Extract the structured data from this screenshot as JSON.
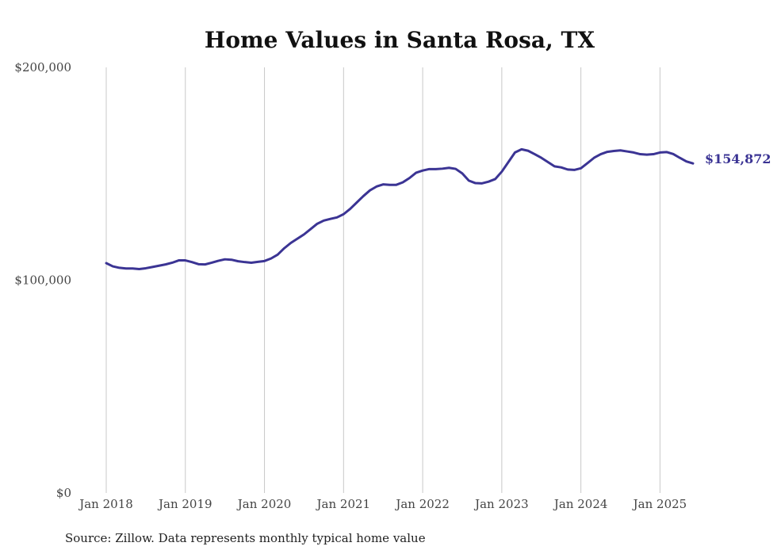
{
  "chart_data": {
    "type": "line",
    "title": "Home Values in Santa Rosa, TX",
    "source": "Source: Zillow. Data represents monthly typical home value",
    "xlabel": "",
    "ylabel": "",
    "ylim": [
      0,
      200000
    ],
    "xlim": [
      "2018-01",
      "2025-06"
    ],
    "y_ticks": [
      {
        "value": 0,
        "label": "$0"
      },
      {
        "value": 100000,
        "label": "$100,000"
      },
      {
        "value": 200000,
        "label": "$200,000"
      }
    ],
    "x_ticks": [
      {
        "value": "2018-01",
        "label": "Jan 2018"
      },
      {
        "value": "2019-01",
        "label": "Jan 2019"
      },
      {
        "value": "2020-01",
        "label": "Jan 2020"
      },
      {
        "value": "2021-01",
        "label": "Jan 2021"
      },
      {
        "value": "2022-01",
        "label": "Jan 2022"
      },
      {
        "value": "2023-01",
        "label": "Jan 2023"
      },
      {
        "value": "2024-01",
        "label": "Jan 2024"
      },
      {
        "value": "2025-01",
        "label": "Jan 2025"
      }
    ],
    "grid": {
      "vertical": true,
      "horizontal": false
    },
    "color": "#3b3494",
    "end_label": "$154,872",
    "series": [
      {
        "x": [
          "2018-01",
          "2018-02",
          "2018-03",
          "2018-04",
          "2018-05",
          "2018-06",
          "2018-07",
          "2018-08",
          "2018-09",
          "2018-10",
          "2018-11",
          "2018-12",
          "2019-01",
          "2019-02",
          "2019-03",
          "2019-04",
          "2019-05",
          "2019-06",
          "2019-07",
          "2019-08",
          "2019-09",
          "2019-10",
          "2019-11",
          "2019-12",
          "2020-01",
          "2020-02",
          "2020-03",
          "2020-04",
          "2020-05",
          "2020-06",
          "2020-07",
          "2020-08",
          "2020-09",
          "2020-10",
          "2020-11",
          "2020-12",
          "2021-01",
          "2021-02",
          "2021-03",
          "2021-04",
          "2021-05",
          "2021-06",
          "2021-07",
          "2021-08",
          "2021-09",
          "2021-10",
          "2021-11",
          "2021-12",
          "2022-01",
          "2022-02",
          "2022-03",
          "2022-04",
          "2022-05",
          "2022-06",
          "2022-07",
          "2022-08",
          "2022-09",
          "2022-10",
          "2022-11",
          "2022-12",
          "2023-01",
          "2023-02",
          "2023-03",
          "2023-04",
          "2023-05",
          "2023-06",
          "2023-07",
          "2023-08",
          "2023-09",
          "2023-10",
          "2023-11",
          "2023-12",
          "2024-01",
          "2024-02",
          "2024-03",
          "2024-04",
          "2024-05",
          "2024-06",
          "2024-07",
          "2024-08",
          "2024-09",
          "2024-10",
          "2024-11",
          "2024-12",
          "2025-01",
          "2025-02",
          "2025-03",
          "2025-04",
          "2025-05",
          "2025-06"
        ],
        "values": [
          108000,
          106500,
          105800,
          105500,
          105500,
          105200,
          105600,
          106200,
          106800,
          107400,
          108200,
          109300,
          109300,
          108500,
          107500,
          107400,
          108200,
          109100,
          109800,
          109600,
          108900,
          108500,
          108200,
          108600,
          109000,
          110200,
          112000,
          115000,
          117500,
          119500,
          121500,
          124000,
          126500,
          128000,
          128800,
          129500,
          131000,
          133500,
          136500,
          139500,
          142200,
          144000,
          145000,
          144800,
          144800,
          146000,
          148000,
          150500,
          151500,
          152200,
          152200,
          152400,
          152800,
          152300,
          150200,
          146800,
          145600,
          145500,
          146300,
          147500,
          151000,
          155500,
          160000,
          161500,
          160800,
          159200,
          157500,
          155500,
          153500,
          153000,
          152000,
          151800,
          152600,
          155000,
          157500,
          159200,
          160300,
          160700,
          161000,
          160500,
          160000,
          159200,
          159000,
          159200,
          160000,
          160200,
          159300,
          157500,
          155800,
          154872
        ]
      }
    ]
  }
}
